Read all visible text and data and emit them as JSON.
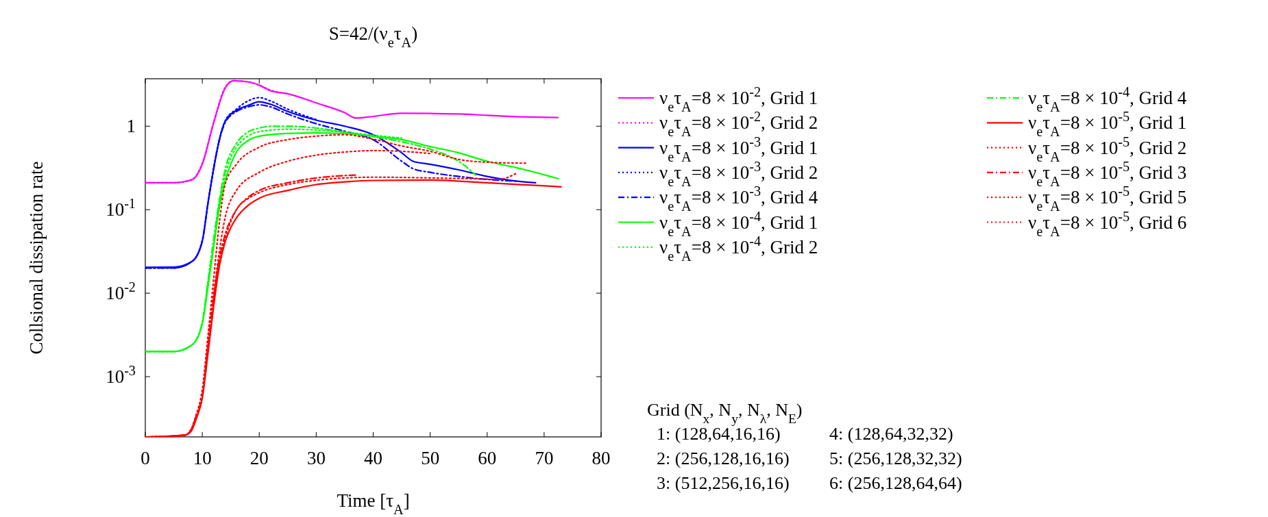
{
  "chart_data": {
    "type": "line",
    "title": "S=42/(ν$_{e}$τ$_{A}$)",
    "xlabel": "Time [τ$_{A}$]",
    "ylabel": "Collsional dissipation rate",
    "log": "y",
    "legend": "right",
    "xlim": [
      0,
      80
    ],
    "ylim": [
      0.00019,
      3.7
    ],
    "xticks": [
      0,
      10,
      20,
      30,
      40,
      50,
      60,
      70,
      80
    ],
    "yticks": [
      {
        "value": 0.001,
        "label": "10$^{-3}$"
      },
      {
        "value": 0.01,
        "label": "10$^{-2}$"
      },
      {
        "value": 0.1,
        "label": "10$^{-1}$"
      },
      1
    ],
    "series": [
      {
        "name": "ν$_{e}$τ$_{A}$=8 × 10$^{-2}$, Grid 1",
        "color": "#ff00ff",
        "line_style": "solid",
        "x": [
          0,
          5,
          8.2,
          10,
          12,
          14,
          15.5,
          18,
          20,
          22,
          25,
          30,
          35,
          37,
          40,
          45,
          50,
          55,
          60,
          65,
          72.4
        ],
        "values": [
          0.21,
          0.21,
          0.228,
          0.35,
          1.1,
          2.84,
          3.5,
          3.4,
          3.1,
          2.65,
          2.45,
          1.9,
          1.45,
          1.25,
          1.31,
          1.43,
          1.42,
          1.4,
          1.35,
          1.3,
          1.27
        ]
      },
      {
        "name": "ν$_{e}$τ$_{A}$=8 × 10$^{-2}$, Grid 2",
        "color": "#ff00ff",
        "line_style": "dotted",
        "x": [
          0,
          5,
          8.2,
          10,
          12,
          14,
          15.5,
          18,
          20,
          22,
          25
        ],
        "values": [
          0.21,
          0.21,
          0.23,
          0.36,
          1.12,
          2.9,
          3.5,
          3.4,
          3.1,
          2.7,
          2.45
        ]
      },
      {
        "name": "ν$_{e}$τ$_{A}$=8 × 10$^{-3}$, Grid 1",
        "color": "#0000ff",
        "line_style": "solid",
        "x": [
          0,
          5,
          8.2,
          10,
          11,
          12,
          13,
          14,
          16,
          18,
          20,
          22,
          25,
          30,
          35,
          40,
          45,
          47,
          50,
          55,
          60,
          65,
          68.5
        ],
        "values": [
          0.0204,
          0.0205,
          0.024,
          0.042,
          0.12,
          0.31,
          0.69,
          1.14,
          1.55,
          1.77,
          1.96,
          1.83,
          1.5,
          1.18,
          1.0,
          0.79,
          0.48,
          0.38,
          0.35,
          0.3,
          0.25,
          0.22,
          0.21
        ]
      },
      {
        "name": "ν$_{e}$τ$_{A}$=8 × 10$^{-3}$, Grid 2",
        "color": "#0000ff",
        "line_style": "dotted",
        "x": [
          0,
          5,
          8.2,
          10,
          11,
          12,
          13,
          14,
          16,
          18,
          20,
          22,
          25,
          30
        ],
        "values": [
          0.02,
          0.02,
          0.024,
          0.043,
          0.12,
          0.32,
          0.7,
          1.15,
          1.6,
          2.0,
          2.2,
          2.0,
          1.6,
          1.2
        ]
      },
      {
        "name": "ν$_{e}$τ$_{A}$=8 × 10$^{-3}$, Grid 4",
        "color": "#0000ff",
        "line_style": "dashed",
        "x": [
          0,
          5,
          8.2,
          10,
          11,
          12,
          13,
          14,
          16,
          18,
          20,
          22,
          25,
          30,
          35,
          40,
          45,
          47,
          50,
          55,
          60,
          65
        ],
        "values": [
          0.02,
          0.02,
          0.024,
          0.042,
          0.12,
          0.31,
          0.68,
          1.1,
          1.5,
          1.7,
          1.8,
          1.7,
          1.4,
          1.07,
          0.87,
          0.69,
          0.38,
          0.31,
          0.28,
          0.25,
          0.23,
          0.22
        ]
      },
      {
        "name": "ν$_{e}$τ$_{A}$=8 × 10$^{-4}$, Grid 1",
        "color": "#00ff00",
        "line_style": "solid",
        "x": [
          0,
          5,
          8.2,
          10,
          11,
          12,
          13,
          14,
          15,
          16,
          18,
          20,
          25,
          30,
          35,
          40,
          45,
          50,
          55,
          60,
          65,
          72.5
        ],
        "values": [
          0.002,
          0.002,
          0.0024,
          0.0043,
          0.012,
          0.036,
          0.105,
          0.22,
          0.35,
          0.49,
          0.67,
          0.76,
          0.82,
          0.83,
          0.82,
          0.76,
          0.69,
          0.57,
          0.48,
          0.38,
          0.32,
          0.235
        ]
      },
      {
        "name": "ν$_{e}$τ$_{A}$=8 × 10$^{-4}$, Grid 2",
        "color": "#00ff00",
        "line_style": "dotted",
        "x": [
          0,
          5,
          8.2,
          10,
          11,
          12,
          13,
          14,
          15,
          16,
          18,
          20,
          25,
          30,
          35,
          40,
          45
        ],
        "values": [
          0.002,
          0.002,
          0.0024,
          0.0044,
          0.013,
          0.04,
          0.12,
          0.26,
          0.42,
          0.56,
          0.76,
          0.86,
          0.92,
          0.9,
          0.85,
          0.78,
          0.72
        ]
      },
      {
        "name": "ν$_{e}$τ$_{A}$=8 × 10$^{-4}$, Grid 4",
        "color": "#00ff00",
        "line_style": "dashed",
        "x": [
          0,
          5,
          8.2,
          10,
          11,
          12,
          13,
          14,
          16,
          18,
          20,
          22,
          25,
          30,
          35,
          40,
          45,
          50,
          55,
          58
        ],
        "values": [
          0.002,
          0.002,
          0.0024,
          0.0045,
          0.014,
          0.045,
          0.13,
          0.3,
          0.62,
          0.85,
          0.95,
          1.0,
          1.0,
          0.95,
          0.85,
          0.75,
          0.65,
          0.53,
          0.38,
          0.26
        ]
      },
      {
        "name": "ν$_{e}$τ$_{A}$=8 × 10$^{-5}$, Grid 1",
        "color": "#ff0000",
        "line_style": "solid",
        "x": [
          0,
          7,
          8,
          9,
          10,
          11,
          12,
          13,
          14,
          15,
          16,
          18,
          20,
          25,
          30,
          35,
          40,
          50,
          60,
          73
        ],
        "values": [
          0.00019,
          0.0002,
          0.00022,
          0.00032,
          0.00055,
          0.0019,
          0.007,
          0.021,
          0.041,
          0.061,
          0.08,
          0.112,
          0.137,
          0.17,
          0.2,
          0.215,
          0.224,
          0.227,
          0.21,
          0.188
        ]
      },
      {
        "name": "ν$_{e}$τ$_{A}$=8 × 10$^{-5}$, Grid 2",
        "color": "#ff0000",
        "line_style": "dotted",
        "x": [
          1,
          7,
          8,
          9,
          10,
          11,
          12,
          13,
          14,
          16,
          18,
          20,
          25,
          30,
          40,
          50,
          60,
          62,
          65
        ],
        "values": [
          0.00019,
          0.0002,
          0.00023,
          0.00034,
          0.0006,
          0.0022,
          0.008,
          0.024,
          0.045,
          0.1,
          0.135,
          0.16,
          0.2,
          0.225,
          0.245,
          0.24,
          0.232,
          0.23,
          0.27
        ]
      },
      {
        "name": "ν$_{e}$τ$_{A}$=8 × 10$^{-5}$, Grid 3",
        "color": "#ff0000",
        "line_style": "dashed",
        "x": [
          1,
          7,
          8,
          9,
          10,
          11,
          12,
          13,
          14,
          16,
          18,
          20,
          25,
          30,
          37
        ],
        "values": [
          0.00019,
          0.0002,
          0.00023,
          0.00035,
          0.0006,
          0.0023,
          0.009,
          0.026,
          0.05,
          0.1,
          0.14,
          0.17,
          0.21,
          0.24,
          0.26
        ]
      },
      {
        "name": "ν$_{e}$τ$_{A}$=8 × 10$^{-5}$, Grid 5",
        "color": "#ff0000",
        "line_style": "dotted",
        "x": [
          1,
          7,
          8,
          9,
          10,
          11,
          12,
          14,
          16,
          20,
          25,
          30,
          35,
          40,
          45,
          50
        ],
        "values": [
          0.00019,
          0.0002,
          0.00023,
          0.00036,
          0.0007,
          0.003,
          0.01,
          0.08,
          0.17,
          0.28,
          0.38,
          0.45,
          0.49,
          0.51,
          0.5,
          0.47
        ]
      },
      {
        "name": "ν$_{e}$τ$_{A}$=8 × 10$^{-5}$, Grid 6",
        "color": "#ff0000",
        "line_style": "dotted",
        "x": [
          1,
          7,
          8,
          9,
          10,
          11,
          12,
          13,
          14,
          16,
          20,
          25,
          30,
          35,
          40,
          45,
          50,
          55,
          60,
          67
        ],
        "values": [
          0.00019,
          0.0002,
          0.00023,
          0.00036,
          0.0006,
          0.003,
          0.015,
          0.07,
          0.2,
          0.35,
          0.56,
          0.69,
          0.76,
          0.79,
          0.7,
          0.58,
          0.5,
          0.4,
          0.37,
          0.36
        ]
      }
    ],
    "annotations": [
      "Grid (N$_{x}$, N$_{y}$, N$_{λ}$, N$_{E}$)",
      "1: (128,64,16,16)",
      "4: (128,64,32,32)",
      "2: (256,128,16,16)",
      "5: (256,128,32,32)",
      "3: (512,256,16,16)",
      "6: (256,128,64,64)"
    ]
  }
}
